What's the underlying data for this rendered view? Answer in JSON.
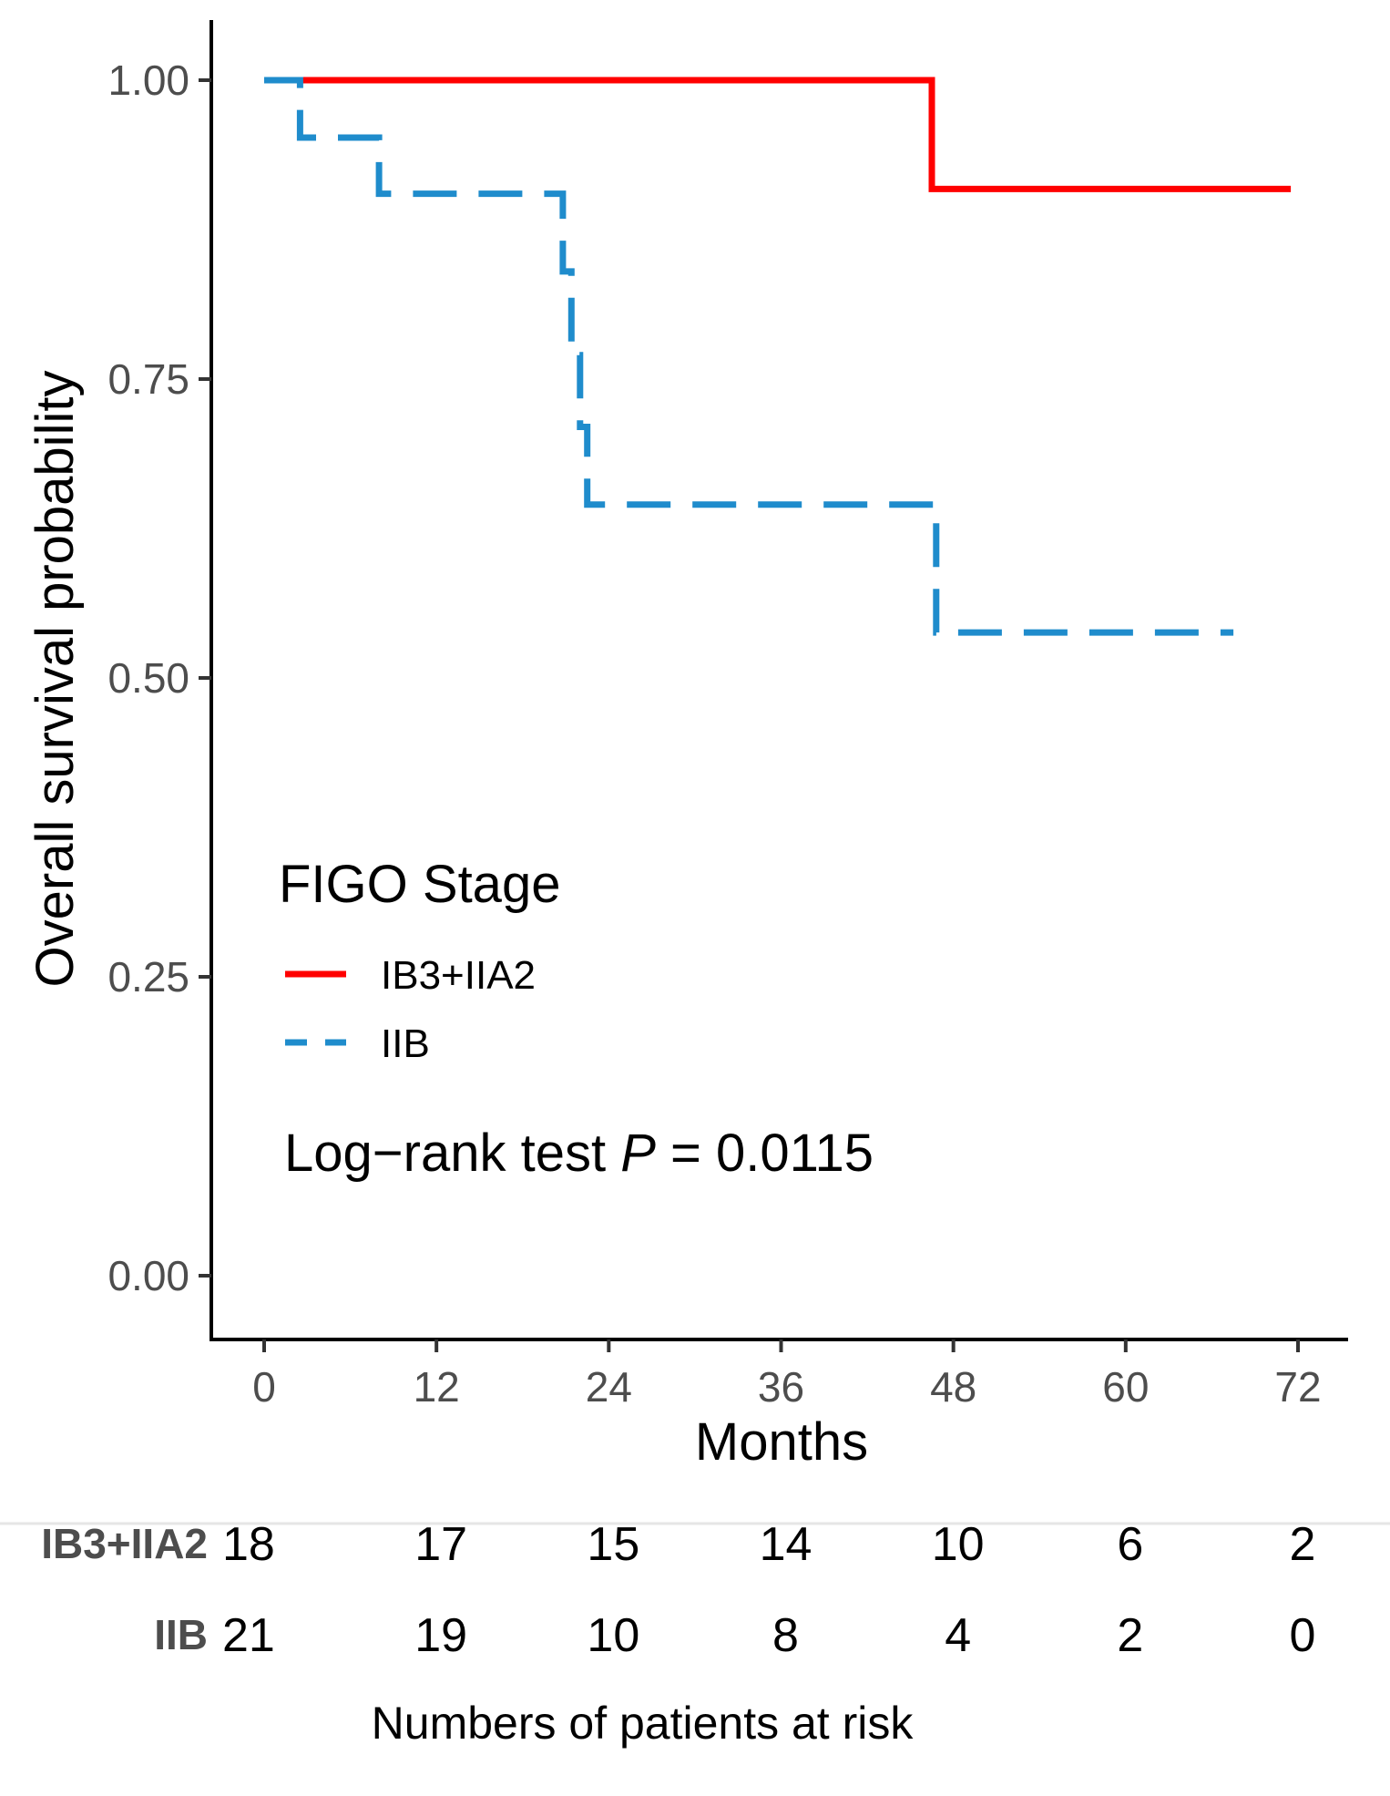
{
  "chart_data": {
    "type": "line",
    "subtype": "kaplan-meier step",
    "xlabel": "Months",
    "ylabel": "Overall survival probability",
    "xlim": [
      0,
      72
    ],
    "ylim": [
      0,
      1
    ],
    "x_ticks": [
      0,
      12,
      24,
      36,
      48,
      60,
      72
    ],
    "x_tick_labels": [
      "0",
      "12",
      "24",
      "36",
      "48",
      "60",
      "72"
    ],
    "y_ticks": [
      0,
      0.25,
      0.5,
      0.75,
      1.0
    ],
    "y_tick_labels": [
      "0.00",
      "0.25",
      "0.50",
      "0.75",
      "1.00"
    ],
    "legend": {
      "title": "FIGO Stage",
      "position": "lower-left inside plot"
    },
    "series": [
      {
        "name": "IB3+IIA2",
        "color": "#ff0000",
        "line_style": "solid",
        "x": [
          0,
          46.5,
          46.5,
          71.5
        ],
        "y": [
          1.0,
          1.0,
          0.909,
          0.909
        ]
      },
      {
        "name": "IIB",
        "color": "#1f8ccc",
        "line_style": "dashed",
        "x": [
          0,
          2.5,
          2.5,
          8,
          8,
          20.8,
          20.8,
          21.4,
          21.4,
          22,
          22,
          22.5,
          22.5,
          46.8,
          46.8,
          67.5
        ],
        "y": [
          1.0,
          1.0,
          0.952,
          0.952,
          0.905,
          0.905,
          0.84,
          0.84,
          0.77,
          0.77,
          0.71,
          0.71,
          0.645,
          0.645,
          0.538,
          0.538
        ]
      }
    ],
    "annotation": {
      "prefix": "Log−rank test ",
      "p_symbol": "P",
      "suffix": " = 0.0115"
    },
    "risk_table": {
      "title": "Numbers of patients at risk",
      "time_points": [
        0,
        12,
        24,
        36,
        48,
        60,
        72
      ],
      "rows": [
        {
          "name": "IB3+IIA2",
          "values": [
            "18",
            "17",
            "15",
            "14",
            "10",
            "6",
            "2"
          ]
        },
        {
          "name": "IIB",
          "values": [
            "21",
            "19",
            "10",
            "8",
            "4",
            "2",
            "0"
          ]
        }
      ]
    }
  }
}
